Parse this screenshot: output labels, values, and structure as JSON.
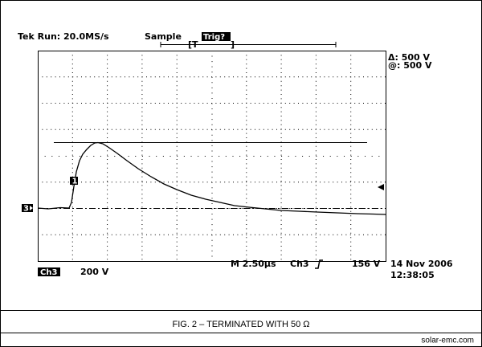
{
  "header": {
    "run": "Tek Run: 20.0MS/s",
    "mode": "Sample",
    "trigger_status": "Trig?",
    "trigger_marker_left": "[T",
    "trigger_marker_right": "]"
  },
  "readout": [
    "Δ: 500 V",
    "@: 500 V"
  ],
  "footer": {
    "timebase": "M 2.50µs",
    "trigger_source": "Ch3",
    "trigger_level": "156 V",
    "channel": "Ch3",
    "scale": "200 V",
    "date": "14 Nov 2006",
    "time": "12:38:05"
  },
  "markers": {
    "channel": "3",
    "cursor": "1"
  },
  "caption": "FIG. 2 – TERMINATED WITH 50 Ω",
  "source": "solar-emc.com"
}
